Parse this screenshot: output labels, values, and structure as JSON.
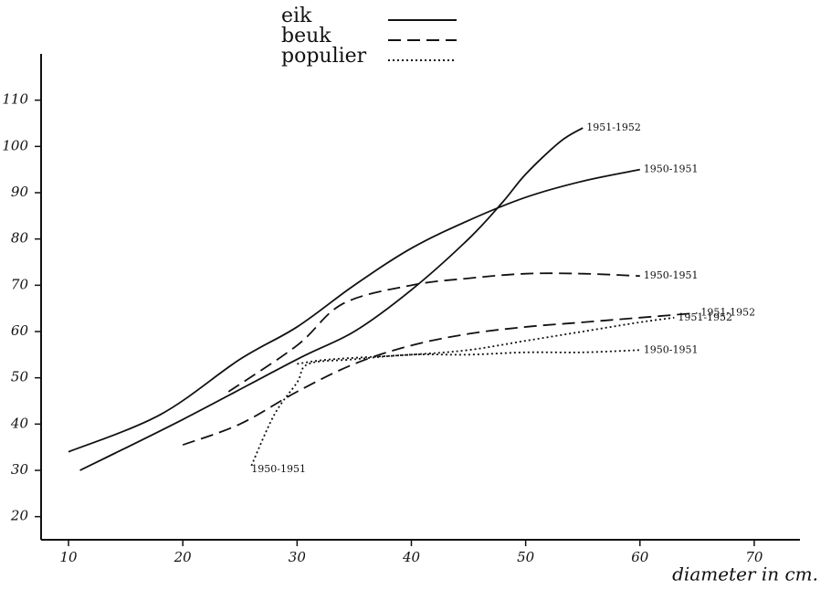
{
  "chart_data": {
    "type": "line",
    "x_label": "diameter in cm.",
    "xlim": [
      7.6,
      74
    ],
    "ylim": [
      15,
      120
    ],
    "xticks": [
      10,
      20,
      30,
      40,
      50,
      60,
      70
    ],
    "yticks": [
      20,
      30,
      40,
      50,
      60,
      70,
      80,
      90,
      100,
      110
    ],
    "legend": [
      {
        "name": "eik",
        "dash": "solid"
      },
      {
        "name": "beuk",
        "dash": "dashed"
      },
      {
        "name": "populier",
        "dash": "dotted"
      }
    ],
    "series": [
      {
        "group": 0,
        "color": "#111",
        "end_label": "1950-1951",
        "x": [
          10,
          18,
          25,
          30,
          35,
          40,
          45,
          50,
          55,
          60
        ],
        "values": [
          34,
          42,
          54,
          61,
          70,
          78,
          84,
          89,
          92.5,
          95
        ]
      },
      {
        "group": 0,
        "color": "#111",
        "end_label": "1951-1952",
        "x": [
          11,
          20,
          30,
          35,
          40,
          45,
          48,
          50,
          53,
          55
        ],
        "values": [
          30,
          41,
          54,
          60,
          69,
          80,
          88,
          94,
          101,
          104
        ]
      },
      {
        "group": 1,
        "color": "#111",
        "end_label": "1950-1951",
        "x": [
          24,
          30,
          34,
          40,
          45,
          50,
          55,
          60
        ],
        "values": [
          47,
          57,
          66,
          70,
          71.5,
          72.5,
          72.5,
          72
        ]
      },
      {
        "group": 1,
        "color": "#111",
        "end_label": "1951-1952",
        "x": [
          20,
          25,
          30,
          35,
          40,
          45,
          50,
          55,
          60,
          65
        ],
        "values": [
          35.5,
          40,
          47,
          53,
          57,
          59.5,
          61,
          62,
          63,
          64
        ]
      },
      {
        "group": 2,
        "color": "#111",
        "start_label": "1950-1951",
        "end_label": "1950-1951",
        "x": [
          26,
          28,
          30,
          31,
          35,
          40,
          45,
          50,
          55,
          60
        ],
        "values": [
          31,
          42,
          49,
          53,
          54,
          55,
          55,
          55.5,
          55.5,
          56
        ]
      },
      {
        "group": 2,
        "color": "#111",
        "end_label": "1951-1952",
        "x": [
          30,
          33,
          40,
          45,
          50,
          55,
          60,
          63
        ],
        "values": [
          53,
          54,
          55,
          56,
          58,
          60,
          62,
          63
        ]
      }
    ]
  }
}
